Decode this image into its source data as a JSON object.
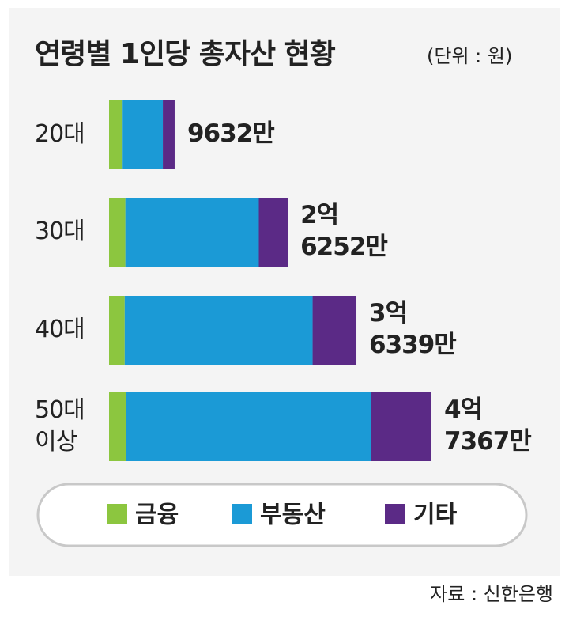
{
  "chart_data": {
    "type": "stacked-bar",
    "orientation": "horizontal",
    "title": "연령별 1인당 총자산 현황",
    "unit": "(단위 : 원)",
    "categories": [
      [
        "20대"
      ],
      [
        "30대"
      ],
      [
        "40대"
      ],
      [
        "50대",
        "이상"
      ]
    ],
    "series": [
      {
        "name": "금융",
        "color": "#8cc63f",
        "values": [
          20000000,
          24000000,
          23000000,
          25000000
        ]
      },
      {
        "name": "부동산",
        "color": "#1b9ad6",
        "values": [
          59000000,
          196000000,
          276000000,
          360000000
        ]
      },
      {
        "name": "기타",
        "color": "#5b2a86",
        "values": [
          17320000,
          42520000,
          64390000,
          88670000
        ]
      }
    ],
    "totals": [
      96320000,
      262520000,
      363390000,
      473670000
    ],
    "total_labels": [
      [
        "9632만"
      ],
      [
        "2억",
        "6252만"
      ],
      [
        "3억",
        "6339만"
      ],
      [
        "4억",
        "7367만"
      ]
    ],
    "source": "자료 : 신한은행"
  }
}
